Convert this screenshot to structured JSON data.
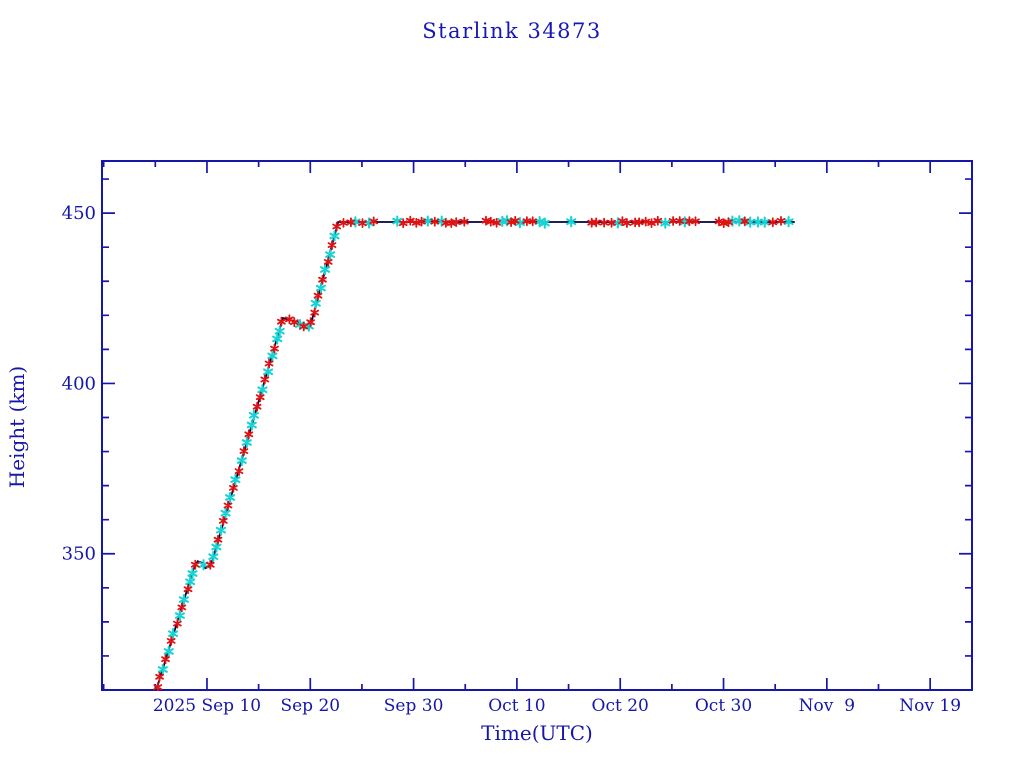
{
  "page": {
    "background": "#ffffff"
  },
  "chart_data": {
    "type": "line",
    "title": "Starlink 34873",
    "xlabel": "Time(UTC)",
    "ylabel": "Height (km)",
    "x_axis": {
      "unit": "days_since_Sep10_2025",
      "range_days": [
        -10.16,
        74.05
      ],
      "major_tick_days": [
        0,
        10,
        20,
        30,
        40,
        50,
        60,
        70
      ],
      "major_tick_labels": [
        "2025 Sep 10",
        "Sep 20",
        "Sep 30",
        "Oct 10",
        "Oct 20",
        "Oct 30",
        "Nov  9",
        "Nov 19"
      ],
      "minor_tick_interval_days": 5
    },
    "y_axis": {
      "unit": "km",
      "ylim": [
        310,
        465.3
      ],
      "major_ticks": [
        350,
        400,
        450
      ],
      "major_tick_labels": [
        "350",
        "400",
        "450"
      ],
      "minor_tick_interval": 10
    },
    "grid": false,
    "legend": "none",
    "series": [
      {
        "name": "orbit-height-profile",
        "x_days": [
          -4.9,
          -1.3,
          -0.9,
          -0.45,
          -0.15,
          0.25,
          0.55,
          7.35,
          8.8,
          9.6,
          10.0,
          10.2,
          12.7,
          56.9
        ],
        "y_km": [
          310.0,
          345.5,
          347.8,
          347.3,
          345.8,
          346.3,
          348.2,
          419.2,
          418.0,
          416.2,
          417.5,
          419.0,
          447.4,
          447.4
        ],
        "description": "Height climbs from ~310 km (about Sep 5) to a brief shelf near 347 km (Sep 9-10), rises steadily to a plateau near 419 km (Sep 17-20) with a small dip to ~416 km, then climbs to ~447 km by Sep 22-23 and stays flat at ~447 km until about Nov 6 where the data ends."
      }
    ],
    "markers": {
      "shape": "asterisk",
      "colors": {
        "red": "#e01212",
        "cyan": "#17d3d3"
      },
      "note": "dense alternating red/cyan asterisks along the curve; red dominates on the flat 447 km section"
    },
    "style_colors": {
      "axis_and_text": "#1616a8",
      "title_text": "#1717b4",
      "data_line": "#000042",
      "background": "#ffffff"
    }
  }
}
